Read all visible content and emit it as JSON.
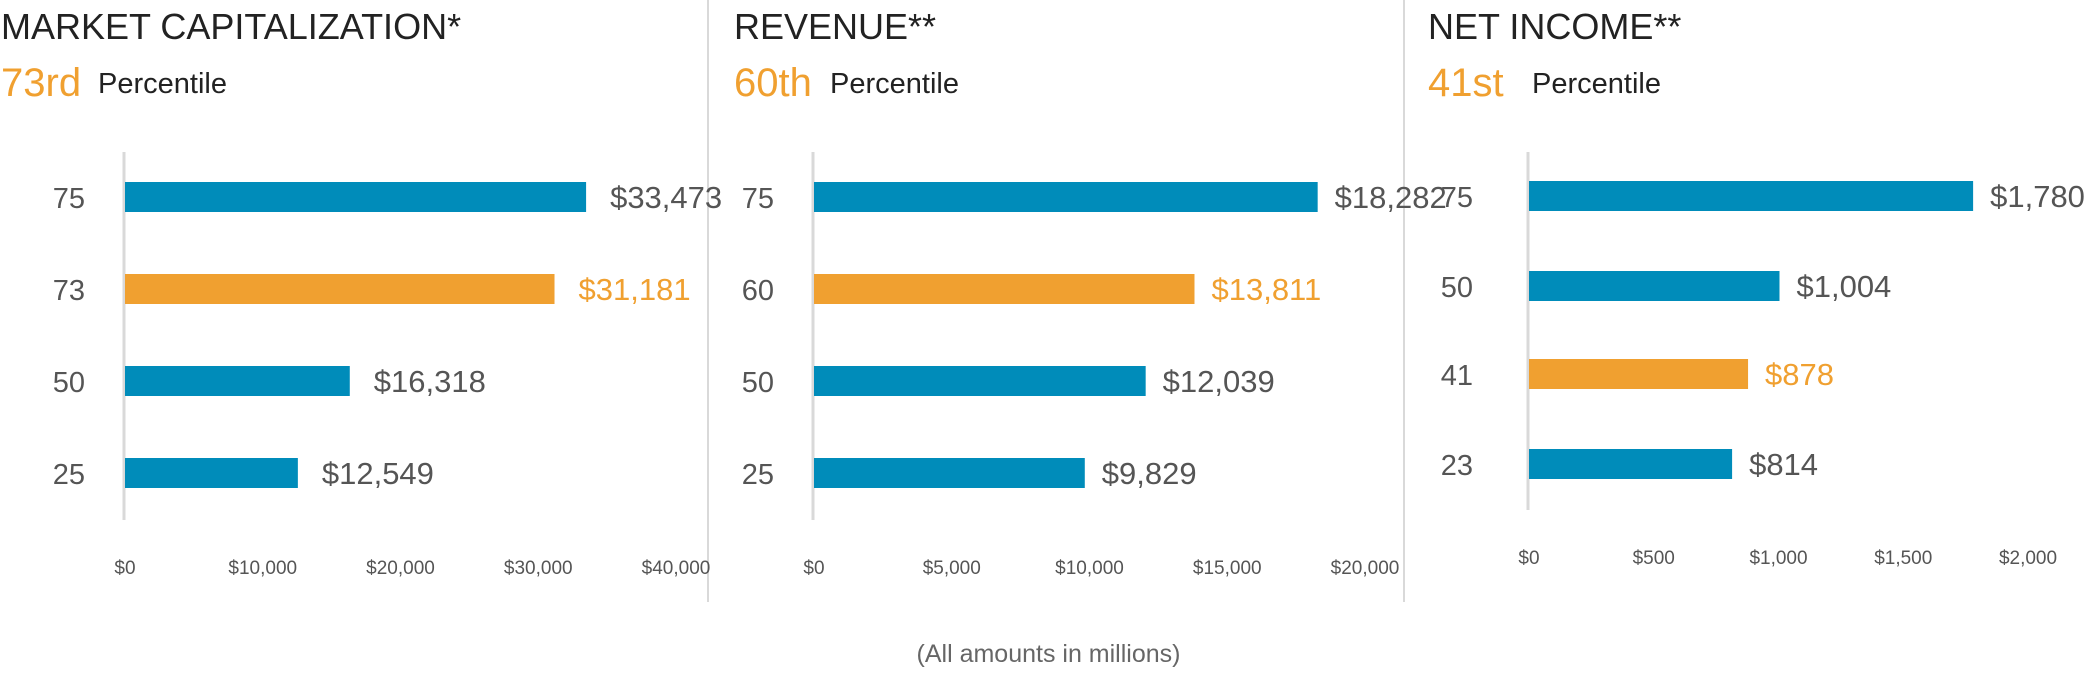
{
  "colors": {
    "bar": "#008CBA",
    "highlight": "#F0A030",
    "axis": "#D9D9D9",
    "divider": "#D9D9D9"
  },
  "footnote": "(All amounts in millions)",
  "chart_data": [
    {
      "type": "bar",
      "orientation": "horizontal",
      "title": "MARKET CAPITALIZATION*",
      "percentile_value": "73rd",
      "percentile_word": "Percentile",
      "categories": [
        "75",
        "73",
        "50",
        "25"
      ],
      "values": [
        33473,
        31181,
        16318,
        12549
      ],
      "value_labels": [
        "$33,473",
        "$31,181",
        "$16,318",
        "$12,549"
      ],
      "highlight_index": 1,
      "xlim": [
        0,
        40000
      ],
      "ticks": [
        0,
        10000,
        20000,
        30000,
        40000
      ],
      "tick_labels": [
        "$0",
        "$10,000",
        "$20,000",
        "$30,000",
        "$40,000"
      ]
    },
    {
      "type": "bar",
      "orientation": "horizontal",
      "title": "REVENUE**",
      "percentile_value": "60th",
      "percentile_word": "Percentile",
      "categories": [
        "75",
        "60",
        "50",
        "25"
      ],
      "values": [
        18282,
        13811,
        12039,
        9829
      ],
      "value_labels": [
        "$18,282",
        "$13,811",
        "$12,039",
        "$9,829"
      ],
      "highlight_index": 1,
      "xlim": [
        0,
        20000
      ],
      "ticks": [
        0,
        5000,
        10000,
        15000,
        20000
      ],
      "tick_labels": [
        "$0",
        "$5,000",
        "$10,000",
        "$15,000",
        "$20,000"
      ]
    },
    {
      "type": "bar",
      "orientation": "horizontal",
      "title": "NET INCOME**",
      "percentile_value": "41st",
      "percentile_word": "Percentile",
      "categories": [
        "75",
        "50",
        "41",
        "23"
      ],
      "values": [
        1780,
        1004,
        878,
        814
      ],
      "value_labels": [
        "$1,780",
        "$1,004",
        "$878",
        "$814"
      ],
      "highlight_index": 2,
      "xlim": [
        0,
        2000
      ],
      "ticks": [
        0,
        500,
        1000,
        1500,
        2000
      ],
      "tick_labels": [
        "$0",
        "$500",
        "$1,000",
        "$1,500",
        "$2,000"
      ]
    }
  ]
}
